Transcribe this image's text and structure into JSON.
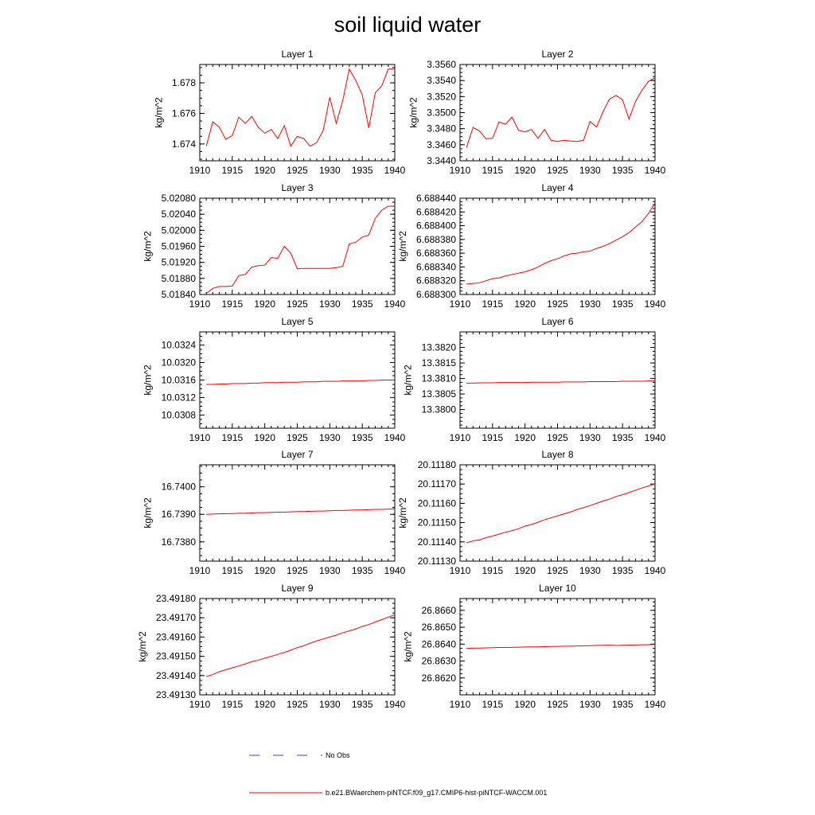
{
  "title": "soil liquid water",
  "colors": {
    "model": "#ff0000",
    "obs": "#3b3bd6",
    "axis": "#000000"
  },
  "legend": [
    {
      "label": "No Obs",
      "style": "dashed",
      "color": "#3b3bd6"
    },
    {
      "label": "b.e21.BWaerchem-piNTCF.f09_g17.CMIP6-hist-piNTCF-WACCM.001",
      "style": "solid",
      "color": "#ff0000"
    }
  ],
  "chart_data": [
    {
      "type": "line",
      "title": "Layer 1",
      "ylabel": "kg/m^2",
      "xlim": [
        1910,
        1940
      ],
      "xticks": [
        1910,
        1915,
        1920,
        1925,
        1930,
        1935,
        1940
      ],
      "xtick_labels": [
        "1910",
        "1915",
        "1920",
        "1925",
        "1930",
        "1935",
        "1940"
      ],
      "ylim": [
        1.6729,
        1.6792
      ],
      "yticks": [
        1.674,
        1.676,
        1.678
      ],
      "ytick_labels": [
        "1.674",
        "1.676",
        "1.678"
      ],
      "x_start": 1911,
      "x_step": 1,
      "series": [
        {
          "values": [
            1.67385,
            1.67545,
            1.6751,
            1.6743,
            1.67455,
            1.67575,
            1.67535,
            1.6758,
            1.6751,
            1.6747,
            1.67495,
            1.67435,
            1.6752,
            1.67385,
            1.6745,
            1.67435,
            1.67385,
            1.6741,
            1.6749,
            1.67705,
            1.67535,
            1.67685,
            1.6789,
            1.67815,
            1.6772,
            1.67505,
            1.67735,
            1.6778,
            1.6789,
            1.6789
          ]
        }
      ]
    },
    {
      "type": "line",
      "title": "Layer 2",
      "ylabel": "kg/m^2",
      "xlim": [
        1910,
        1940
      ],
      "xticks": [
        1910,
        1915,
        1920,
        1925,
        1930,
        1935,
        1940
      ],
      "xtick_labels": [
        "1910",
        "1915",
        "1920",
        "1925",
        "1930",
        "1935",
        "1940"
      ],
      "ylim": [
        3.344,
        3.356
      ],
      "yticks": [
        3.344,
        3.346,
        3.348,
        3.35,
        3.352,
        3.354,
        3.356
      ],
      "ytick_labels": [
        "3.3440",
        "3.3460",
        "3.3480",
        "3.3500",
        "3.3520",
        "3.3540",
        "3.3560"
      ],
      "x_start": 1911,
      "x_step": 1,
      "series": [
        {
          "values": [
            3.34565,
            3.34815,
            3.3477,
            3.34675,
            3.3468,
            3.34885,
            3.34855,
            3.34945,
            3.3478,
            3.3476,
            3.3479,
            3.3468,
            3.3479,
            3.34655,
            3.3464,
            3.34655,
            3.34645,
            3.3464,
            3.34655,
            3.3489,
            3.3482,
            3.3501,
            3.3517,
            3.35215,
            3.3516,
            3.3492,
            3.3514,
            3.3528,
            3.3539,
            3.35435
          ]
        }
      ]
    },
    {
      "type": "line",
      "title": "Layer 3",
      "ylabel": "kg/m^2",
      "xlim": [
        1910,
        1940
      ],
      "xticks": [
        1910,
        1915,
        1920,
        1925,
        1930,
        1935,
        1940
      ],
      "xtick_labels": [
        "1910",
        "1915",
        "1920",
        "1925",
        "1930",
        "1935",
        "1940"
      ],
      "ylim": [
        5.0184,
        5.0208
      ],
      "yticks": [
        5.0184,
        5.0188,
        5.0192,
        5.0196,
        5.02,
        5.0204,
        5.0208
      ],
      "ytick_labels": [
        "5.01840",
        "5.01880",
        "5.01920",
        "5.01960",
        "5.02000",
        "5.02040",
        "5.02080"
      ],
      "x_start": 1911,
      "x_step": 1,
      "series": [
        {
          "values": [
            5.01843,
            5.01855,
            5.0186,
            5.0186,
            5.01861,
            5.01887,
            5.0189,
            5.01908,
            5.01912,
            5.01913,
            5.01932,
            5.0193,
            5.0196,
            5.01943,
            5.01904,
            5.01905,
            5.01905,
            5.01905,
            5.01905,
            5.01905,
            5.01907,
            5.0191,
            5.01966,
            5.0197,
            5.01983,
            5.01988,
            5.0203,
            5.0205,
            5.0206,
            5.0206
          ]
        }
      ]
    },
    {
      "type": "line",
      "title": "Layer 4",
      "ylabel": "kg/m^2",
      "xlim": [
        1910,
        1940
      ],
      "xticks": [
        1910,
        1915,
        1920,
        1925,
        1930,
        1935,
        1940
      ],
      "xtick_labels": [
        "1910",
        "1915",
        "1920",
        "1925",
        "1930",
        "1935",
        "1940"
      ],
      "ylim": [
        6.6883,
        6.68844
      ],
      "yticks": [
        6.6883,
        6.68832,
        6.68834,
        6.68836,
        6.68838,
        6.6884,
        6.68842,
        6.68844
      ],
      "ytick_labels": [
        "6.688300",
        "6.688320",
        "6.688340",
        "6.688360",
        "6.688380",
        "6.688400",
        "6.688420",
        "6.688440"
      ],
      "x_start": 1911,
      "x_step": 1,
      "series": [
        {
          "values": [
            6.688315,
            6.688316,
            6.688317,
            6.68832,
            6.688323,
            6.688324,
            6.688327,
            6.688329,
            6.688331,
            6.688333,
            6.688336,
            6.68834,
            6.688345,
            6.688349,
            6.688352,
            6.688356,
            6.688359,
            6.68836,
            6.688362,
            6.688363,
            6.688367,
            6.68837,
            6.688374,
            6.688379,
            6.688384,
            6.68839,
            6.688398,
            6.688406,
            6.688418,
            6.688433
          ]
        }
      ]
    },
    {
      "type": "line",
      "title": "Layer 5",
      "ylabel": "kg/m^2",
      "xlim": [
        1910,
        1940
      ],
      "xticks": [
        1910,
        1915,
        1920,
        1925,
        1930,
        1935,
        1940
      ],
      "xtick_labels": [
        "1910",
        "1915",
        "1920",
        "1925",
        "1930",
        "1935",
        "1940"
      ],
      "ylim": [
        10.0305,
        10.0327
      ],
      "yticks": [
        10.0308,
        10.0312,
        10.0316,
        10.032,
        10.0324
      ],
      "ytick_labels": [
        "10.0308",
        "10.0312",
        "10.0316",
        "10.0320",
        "10.0324"
      ],
      "x_start": 1911,
      "x_step": 1,
      "series": [
        {
          "values": [
            10.0315,
            10.0315,
            10.03151,
            10.03151,
            10.03152,
            10.03152,
            10.03152,
            10.03153,
            10.03153,
            10.03154,
            10.03154,
            10.03154,
            10.03155,
            10.03155,
            10.03155,
            10.03156,
            10.03156,
            10.03156,
            10.03157,
            10.03157,
            10.03157,
            10.03158,
            10.03158,
            10.03158,
            10.03158,
            10.03159,
            10.03159,
            10.0316,
            10.0316,
            10.0316
          ]
        }
      ]
    },
    {
      "type": "line",
      "title": "Layer 6",
      "ylabel": "kg/m^2",
      "xlim": [
        1910,
        1940
      ],
      "xticks": [
        1910,
        1915,
        1920,
        1925,
        1930,
        1935,
        1940
      ],
      "xtick_labels": [
        "1910",
        "1915",
        "1920",
        "1925",
        "1930",
        "1935",
        "1940"
      ],
      "ylim": [
        13.3794,
        13.3825
      ],
      "yticks": [
        13.38,
        13.3805,
        13.381,
        13.3815,
        13.382
      ],
      "ytick_labels": [
        "13.3800",
        "13.3805",
        "13.3810",
        "13.3815",
        "13.3820"
      ],
      "x_start": 1911,
      "x_step": 1,
      "series": [
        {
          "values": [
            13.38085,
            13.38085,
            13.38086,
            13.38086,
            13.38086,
            13.38087,
            13.38087,
            13.38087,
            13.38087,
            13.38087,
            13.38088,
            13.38088,
            13.38088,
            13.38088,
            13.38088,
            13.38089,
            13.38089,
            13.38089,
            13.38089,
            13.3809,
            13.3809,
            13.3809,
            13.3809,
            13.3809,
            13.38091,
            13.38091,
            13.38091,
            13.38091,
            13.38092,
            13.38092
          ]
        }
      ]
    },
    {
      "type": "line",
      "title": "Layer 7",
      "ylabel": "kg/m^2",
      "xlim": [
        1910,
        1940
      ],
      "xticks": [
        1910,
        1915,
        1920,
        1925,
        1930,
        1935,
        1940
      ],
      "xtick_labels": [
        "1910",
        "1915",
        "1920",
        "1925",
        "1930",
        "1935",
        "1940"
      ],
      "ylim": [
        16.7373,
        16.7408
      ],
      "yticks": [
        16.738,
        16.739,
        16.74
      ],
      "ytick_labels": [
        "16.7380",
        "16.7390",
        "16.7400"
      ],
      "x_start": 1911,
      "x_step": 1,
      "series": [
        {
          "values": [
            16.739,
            16.73901,
            16.73902,
            16.73902,
            16.73903,
            16.73904,
            16.73904,
            16.73905,
            16.73906,
            16.73906,
            16.73907,
            16.73908,
            16.73908,
            16.73909,
            16.7391,
            16.7391,
            16.73911,
            16.73912,
            16.73912,
            16.73913,
            16.73914,
            16.73914,
            16.73915,
            16.73916,
            16.73916,
            16.73917,
            16.73918,
            16.73918,
            16.73919,
            16.7392
          ]
        }
      ]
    },
    {
      "type": "line",
      "title": "Layer 8",
      "ylabel": "kg/m^2",
      "xlim": [
        1910,
        1940
      ],
      "xticks": [
        1910,
        1915,
        1920,
        1925,
        1930,
        1935,
        1940
      ],
      "xtick_labels": [
        "1910",
        "1915",
        "1920",
        "1925",
        "1930",
        "1935",
        "1940"
      ],
      "ylim": [
        20.1113,
        20.1118
      ],
      "yticks": [
        20.1113,
        20.1114,
        20.1115,
        20.1116,
        20.1117,
        20.1118
      ],
      "ytick_labels": [
        "20.11130",
        "20.11140",
        "20.11150",
        "20.11160",
        "20.11170",
        "20.11180"
      ],
      "x_start": 1911,
      "x_step": 1,
      "series": [
        {
          "values": [
            20.111395,
            20.111405,
            20.11141,
            20.111422,
            20.11143,
            20.11144,
            20.11145,
            20.111458,
            20.111468,
            20.111482,
            20.11149,
            20.111502,
            20.111515,
            20.111525,
            20.111535,
            20.111545,
            20.111555,
            20.111568,
            20.111578,
            20.111588,
            20.1116,
            20.111612,
            20.111622,
            20.111635,
            20.111645,
            20.111656,
            20.111668,
            20.11168,
            20.11169,
            20.111702
          ]
        }
      ]
    },
    {
      "type": "line",
      "title": "Layer 9",
      "ylabel": "kg/m^2",
      "xlim": [
        1910,
        1940
      ],
      "xticks": [
        1910,
        1915,
        1920,
        1925,
        1930,
        1935,
        1940
      ],
      "xtick_labels": [
        "1910",
        "1915",
        "1920",
        "1925",
        "1930",
        "1935",
        "1940"
      ],
      "ylim": [
        23.4913,
        23.4918
      ],
      "yticks": [
        23.4913,
        23.4914,
        23.4915,
        23.4916,
        23.4917,
        23.4918
      ],
      "ytick_labels": [
        "23.49130",
        "23.49140",
        "23.49150",
        "23.49160",
        "23.49170",
        "23.49180"
      ],
      "x_start": 1911,
      "x_step": 1,
      "series": [
        {
          "values": [
            23.491395,
            23.491405,
            23.49142,
            23.49143,
            23.49144,
            23.49145,
            23.49146,
            23.491472,
            23.49148,
            23.49149,
            23.4915,
            23.49151,
            23.49152,
            23.491532,
            23.491545,
            23.491555,
            23.491568,
            23.49158,
            23.49159,
            23.4916,
            23.49161,
            23.491622,
            23.491632,
            23.491642,
            23.491655,
            23.491665,
            23.491678,
            23.49169,
            23.491703,
            23.491716
          ]
        }
      ]
    },
    {
      "type": "line",
      "title": "Layer 10",
      "ylabel": "kg/m^2",
      "xlim": [
        1910,
        1940
      ],
      "xticks": [
        1910,
        1915,
        1920,
        1925,
        1930,
        1935,
        1940
      ],
      "xtick_labels": [
        "1910",
        "1915",
        "1920",
        "1925",
        "1930",
        "1935",
        "1940"
      ],
      "ylim": [
        26.861,
        26.8667
      ],
      "yticks": [
        26.862,
        26.863,
        26.864,
        26.865,
        26.866
      ],
      "ytick_labels": [
        "26.8620",
        "26.8630",
        "26.8640",
        "26.8650",
        "26.8660"
      ],
      "x_start": 1911,
      "x_step": 1,
      "series": [
        {
          "values": [
            26.86375,
            26.86376,
            26.86377,
            26.86378,
            26.86379,
            26.8638,
            26.8638,
            26.86381,
            26.86382,
            26.86383,
            26.86384,
            26.86384,
            26.86385,
            26.86386,
            26.86387,
            26.86388,
            26.86388,
            26.86389,
            26.8639,
            26.86391,
            26.86392,
            26.86393,
            26.86394,
            26.86392,
            26.86393,
            26.86394,
            26.86395,
            26.86396,
            26.86397,
            26.86398
          ]
        }
      ]
    }
  ]
}
